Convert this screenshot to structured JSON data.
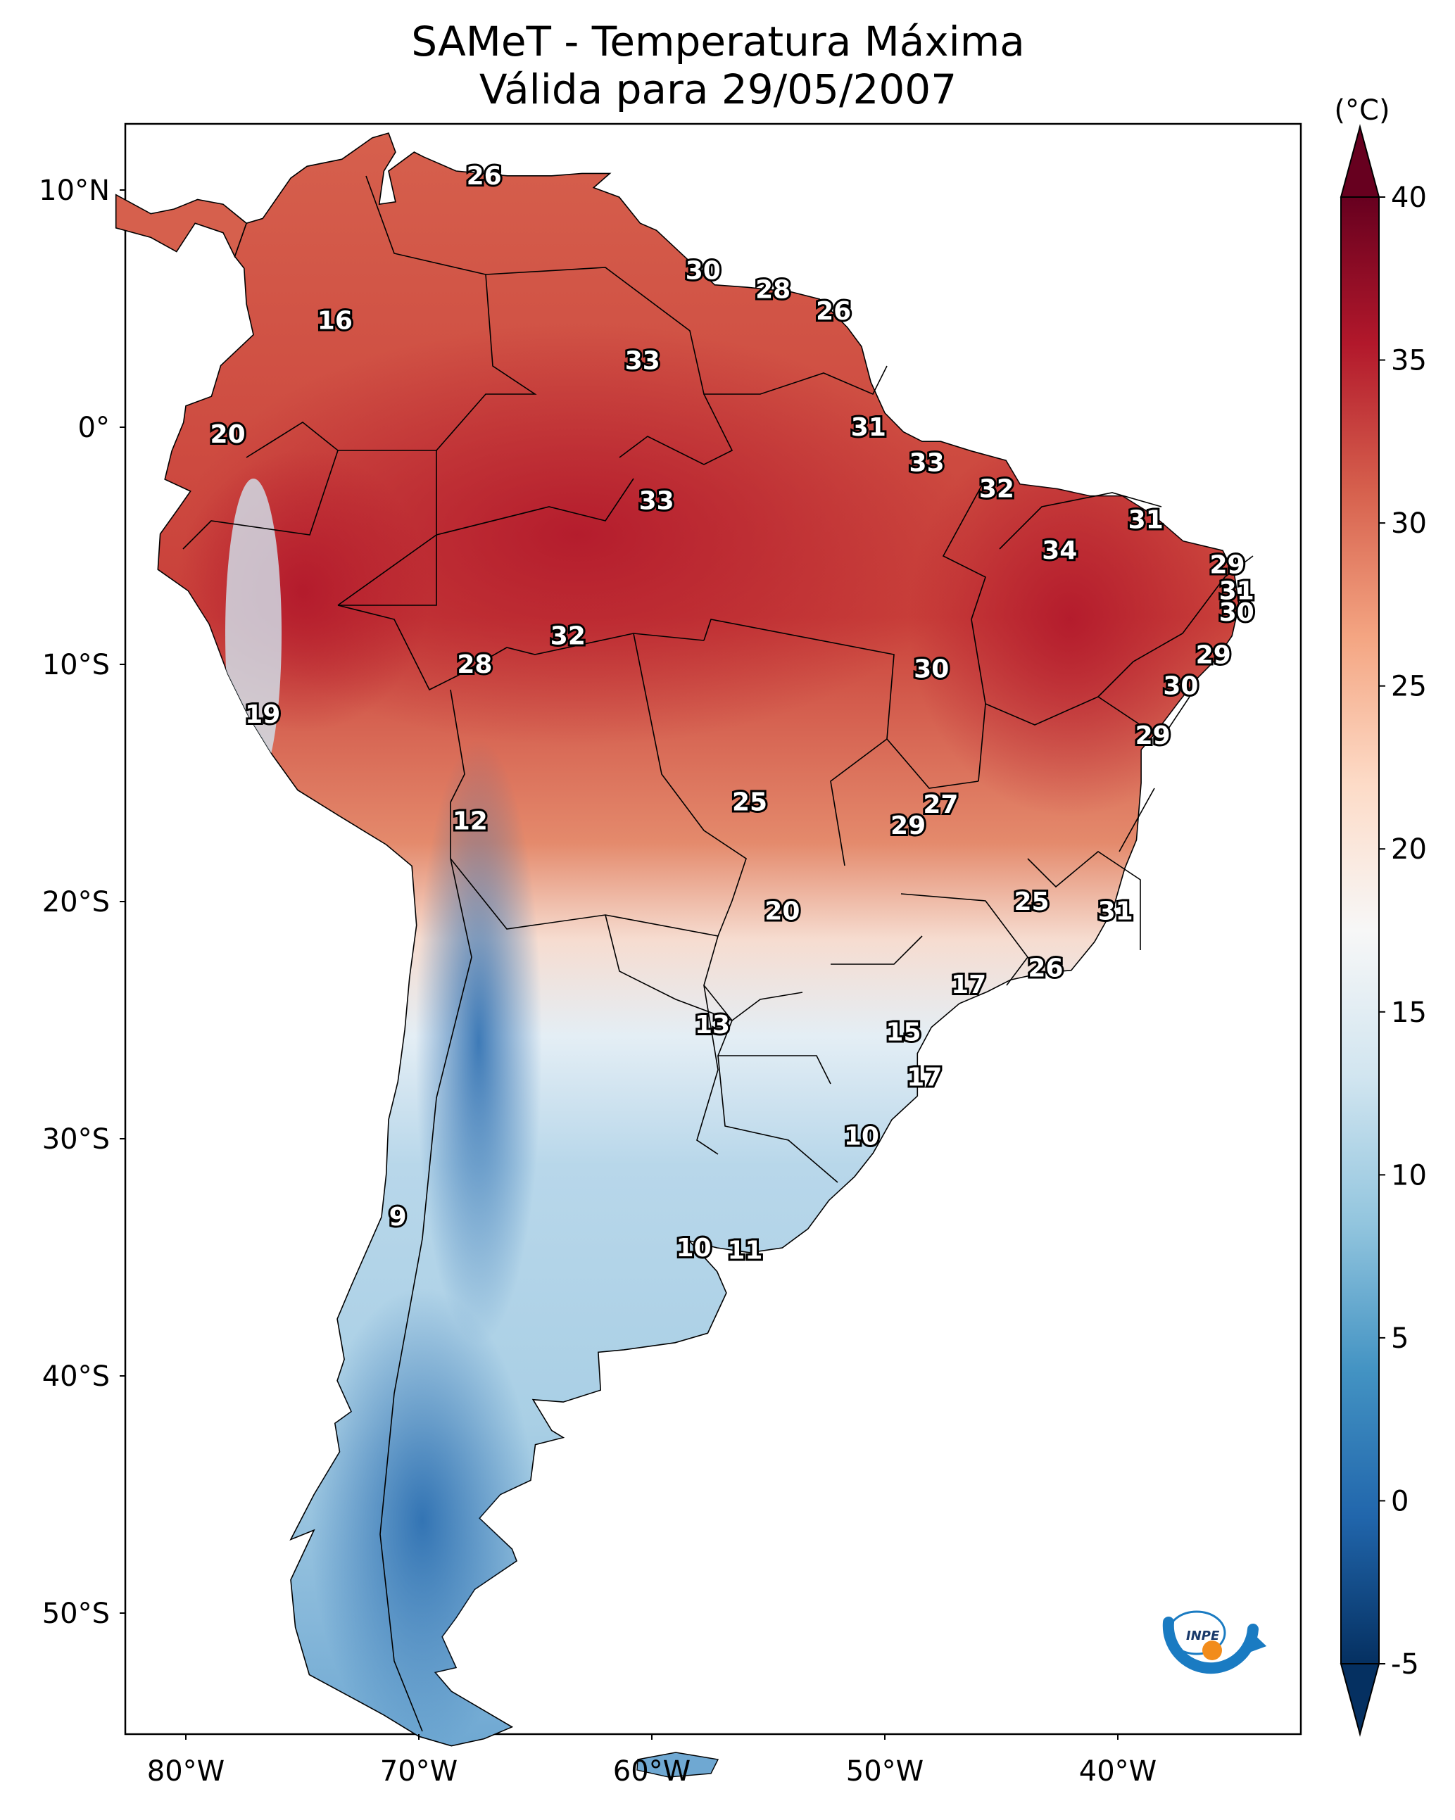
{
  "title": {
    "line1": "SAMeT - Temperatura Máxima",
    "line2": "Válida para 29/05/2007"
  },
  "axes": {
    "lat_labels": [
      "10°N",
      "0°",
      "10°S",
      "20°S",
      "30°S",
      "40°S",
      "50°S"
    ],
    "lat_values": [
      10,
      0,
      -10,
      -20,
      -30,
      -40,
      -50
    ],
    "lon_labels": [
      "80°W",
      "70°W",
      "60°W",
      "50°W",
      "40°W"
    ],
    "lon_values": [
      -80,
      -70,
      -60,
      -50,
      -40
    ],
    "lon_range": [
      -83,
      -33
    ],
    "lat_range": [
      -56,
      13
    ]
  },
  "colorbar": {
    "unit": "(°C)",
    "ticks": [
      "40",
      "35",
      "30",
      "25",
      "20",
      "15",
      "10",
      "5",
      "0",
      "-5"
    ],
    "tick_values": [
      40,
      35,
      30,
      25,
      20,
      15,
      10,
      5,
      0,
      -5
    ],
    "range": [
      -5,
      40
    ],
    "colors": [
      "#053061",
      "#2166ac",
      "#4393c3",
      "#92c5de",
      "#d1e5f0",
      "#f7f7f7",
      "#fddbc7",
      "#f4a582",
      "#d6604d",
      "#b2182b",
      "#67001f"
    ]
  },
  "isotherm_labels": [
    {
      "text": "26",
      "lon": -67.2,
      "lat": 10.6
    },
    {
      "text": "30",
      "lon": -57.8,
      "lat": 6.6
    },
    {
      "text": "28",
      "lon": -54.8,
      "lat": 5.8
    },
    {
      "text": "26",
      "lon": -52.2,
      "lat": 4.9
    },
    {
      "text": "16",
      "lon": -73.6,
      "lat": 4.5
    },
    {
      "text": "33",
      "lon": -60.4,
      "lat": 2.8
    },
    {
      "text": "31",
      "lon": -50.7,
      "lat": 0.0
    },
    {
      "text": "20",
      "lon": -78.2,
      "lat": -0.3
    },
    {
      "text": "33",
      "lon": -48.2,
      "lat": -1.5
    },
    {
      "text": "33",
      "lon": -59.8,
      "lat": -3.1
    },
    {
      "text": "32",
      "lon": -45.2,
      "lat": -2.6
    },
    {
      "text": "31",
      "lon": -38.8,
      "lat": -3.9
    },
    {
      "text": "34",
      "lon": -42.5,
      "lat": -5.2
    },
    {
      "text": "29",
      "lon": -35.3,
      "lat": -5.8
    },
    {
      "text": "31",
      "lon": -34.9,
      "lat": -6.9
    },
    {
      "text": "30",
      "lon": -34.9,
      "lat": -7.8
    },
    {
      "text": "32",
      "lon": -63.6,
      "lat": -8.8
    },
    {
      "text": "29",
      "lon": -35.9,
      "lat": -9.6
    },
    {
      "text": "28",
      "lon": -67.6,
      "lat": -10.0
    },
    {
      "text": "30",
      "lon": -48.0,
      "lat": -10.2
    },
    {
      "text": "30",
      "lon": -37.3,
      "lat": -10.9
    },
    {
      "text": "19",
      "lon": -76.7,
      "lat": -12.1
    },
    {
      "text": "29",
      "lon": -38.5,
      "lat": -13.0
    },
    {
      "text": "25",
      "lon": -55.8,
      "lat": -15.8
    },
    {
      "text": "27",
      "lon": -47.6,
      "lat": -15.9
    },
    {
      "text": "12",
      "lon": -67.8,
      "lat": -16.6
    },
    {
      "text": "29",
      "lon": -49.0,
      "lat": -16.8
    },
    {
      "text": "20",
      "lon": -54.4,
      "lat": -20.4
    },
    {
      "text": "25",
      "lon": -43.7,
      "lat": -20.0
    },
    {
      "text": "31",
      "lon": -40.1,
      "lat": -20.4
    },
    {
      "text": "26",
      "lon": -43.1,
      "lat": -22.8
    },
    {
      "text": "17",
      "lon": -46.4,
      "lat": -23.5
    },
    {
      "text": "13",
      "lon": -57.4,
      "lat": -25.2
    },
    {
      "text": "15",
      "lon": -49.2,
      "lat": -25.5
    },
    {
      "text": "17",
      "lon": -48.3,
      "lat": -27.4
    },
    {
      "text": "10",
      "lon": -51.0,
      "lat": -29.9
    },
    {
      "text": "9",
      "lon": -70.9,
      "lat": -33.3
    },
    {
      "text": "10",
      "lon": -58.2,
      "lat": -34.6
    },
    {
      "text": "11",
      "lon": -56.0,
      "lat": -34.7
    }
  ]
}
